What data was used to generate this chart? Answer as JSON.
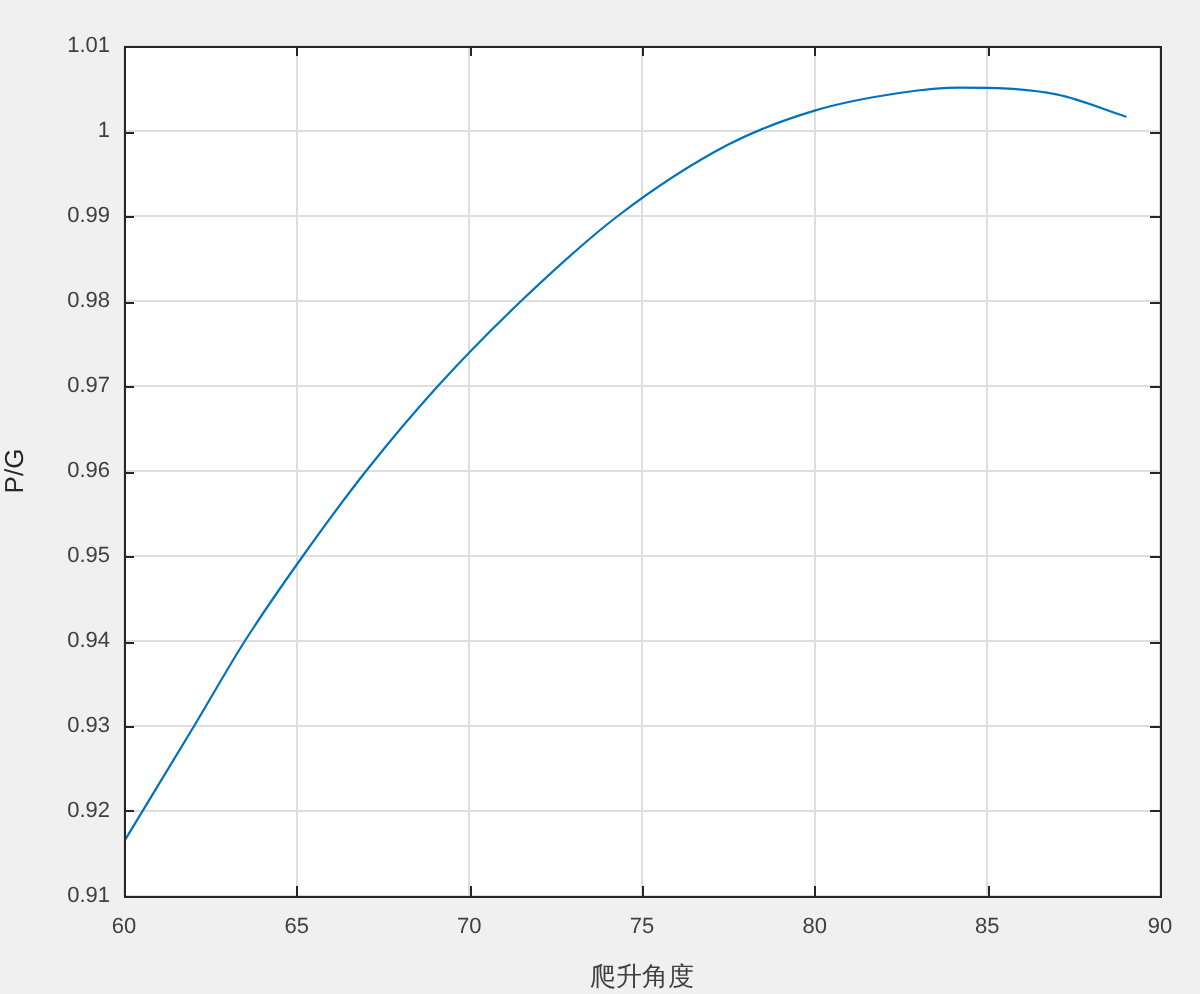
{
  "chart_data": {
    "type": "line",
    "xlabel": "爬升角度",
    "ylabel": "P/G",
    "x": [
      60,
      62.03,
      63.5,
      65.18,
      67.01,
      69.09,
      71.5,
      74.3,
      77.5,
      80,
      82.5,
      84.2,
      87,
      89
    ],
    "series": [
      {
        "color": "#0072bd",
        "values": [
          0.9164,
          0.93,
          0.94,
          0.95,
          0.96,
          0.97,
          0.98,
          0.99,
          0.9984,
          1.0024,
          1.0045,
          1.0051,
          1.0043,
          1.0017
        ]
      }
    ],
    "xlim": [
      60,
      90
    ],
    "ylim": [
      0.91,
      1.01
    ],
    "xticks": [
      60,
      65,
      70,
      75,
      80,
      85,
      90
    ],
    "yticks": [
      0.91,
      0.92,
      0.93,
      0.94,
      0.95,
      0.96,
      0.97,
      0.98,
      0.99,
      1,
      1.01
    ],
    "grid": true,
    "marker": "none",
    "line_style": "solid"
  }
}
